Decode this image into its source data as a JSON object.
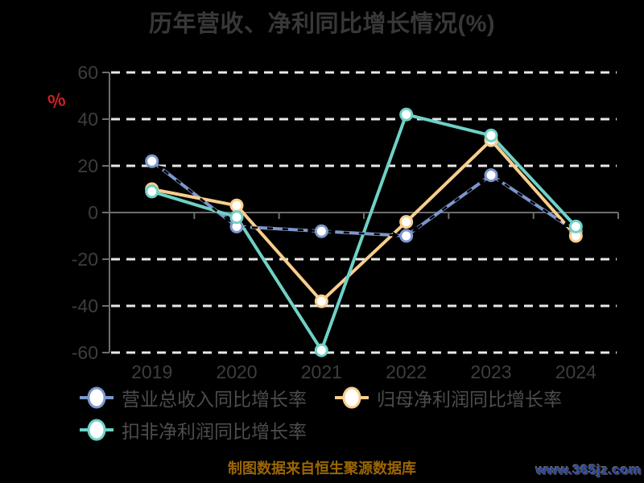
{
  "title": "历年营收、净利同比增长情况(%)",
  "ylabel": "%",
  "footer_note": "制图数据来自恒生聚源数据库",
  "watermark": "www.365jz.com",
  "colors": {
    "background": "#000000",
    "title_text": "#383838",
    "axis_line": "#6e6e6e",
    "tick_label": "#3d3d3d",
    "grid_line": "#e8e8e8",
    "ylabel_text": "#c32222",
    "legend_text": "#4c4c4c",
    "footer_text": "#9c6605",
    "watermark_text": "#2a47a8",
    "marker_fill": "#ffffff",
    "overlay_dash": "#000000"
  },
  "chart_data": {
    "type": "line",
    "title": "历年营收、净利同比增长情况(%)",
    "xlabel": "",
    "ylabel": "%",
    "categories": [
      "2019",
      "2020",
      "2021",
      "2022",
      "2023",
      "2024"
    ],
    "series": [
      {
        "name": "营业总收入同比增长率",
        "color": "#7d97cd",
        "values": [
          22,
          -6,
          -8,
          -10,
          16,
          -8
        ],
        "black_dashed_overlay": true
      },
      {
        "name": "归母净利润同比增长率",
        "color": "#f8ce8d",
        "values": [
          10,
          3,
          -38,
          -4,
          31,
          -10
        ],
        "black_dashed_overlay": false
      },
      {
        "name": "扣非净利润同比增长率",
        "color": "#6ed1c6",
        "values": [
          9,
          -2,
          -59,
          42,
          33,
          -6
        ],
        "black_dashed_overlay": false
      }
    ],
    "ylim": [
      -60,
      60
    ],
    "yticks": [
      60,
      40,
      20,
      0,
      -20,
      -40,
      -60
    ],
    "grid": "horizontal-dashed",
    "legend_position": "bottom-left"
  }
}
